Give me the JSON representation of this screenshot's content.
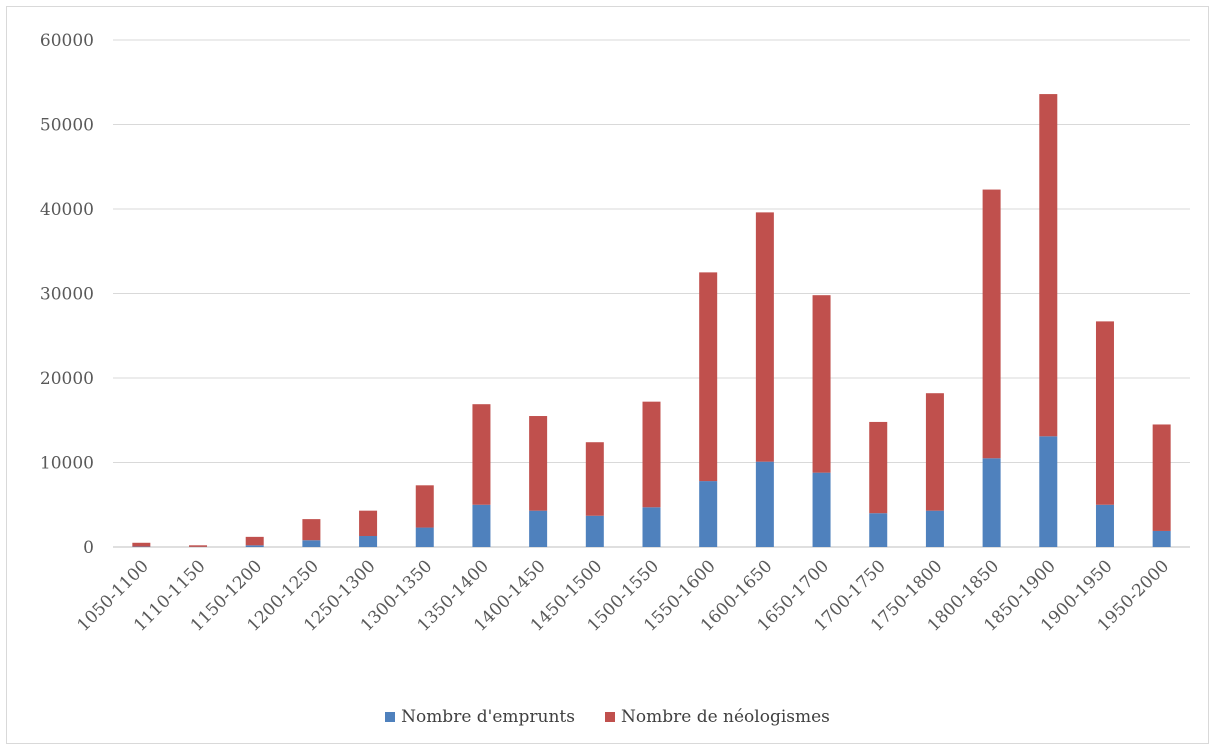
{
  "chart_data": {
    "type": "bar",
    "stacked": true,
    "categories": [
      "1050-1100",
      "1110-1150",
      "1150-1200",
      "1200-1250",
      "1250-1300",
      "1300-1350",
      "1350-1400",
      "1400-1450",
      "1450-1500",
      "1500-1550",
      "1550-1600",
      "1600-1650",
      "1650-1700",
      "1700-1750",
      "1750-1800",
      "1800-1850",
      "1850-1900",
      "1900-1950",
      "1950-2000"
    ],
    "series": [
      {
        "name": "Nombre d'emprunts",
        "color": "#4f81bd",
        "values": [
          50,
          20,
          200,
          800,
          1300,
          2300,
          5000,
          4300,
          3700,
          4700,
          7800,
          10100,
          8800,
          4000,
          4300,
          10500,
          13100,
          5000,
          1900
        ]
      },
      {
        "name": "Nombre de néologismes",
        "color": "#c0504d",
        "values": [
          450,
          180,
          1000,
          2500,
          3000,
          5000,
          11900,
          11200,
          8700,
          12500,
          24700,
          29500,
          21000,
          10800,
          13900,
          31800,
          40500,
          21700,
          12600
        ]
      }
    ],
    "ylim": [
      0,
      60000
    ],
    "yticks": [
      0,
      10000,
      20000,
      30000,
      40000,
      50000,
      60000
    ],
    "ytick_labels": [
      "0",
      "10000",
      "20000",
      "30000",
      "40000",
      "50000",
      "60000"
    ],
    "grid": true,
    "legend_position": "bottom",
    "title": "",
    "xlabel": "",
    "ylabel": ""
  }
}
